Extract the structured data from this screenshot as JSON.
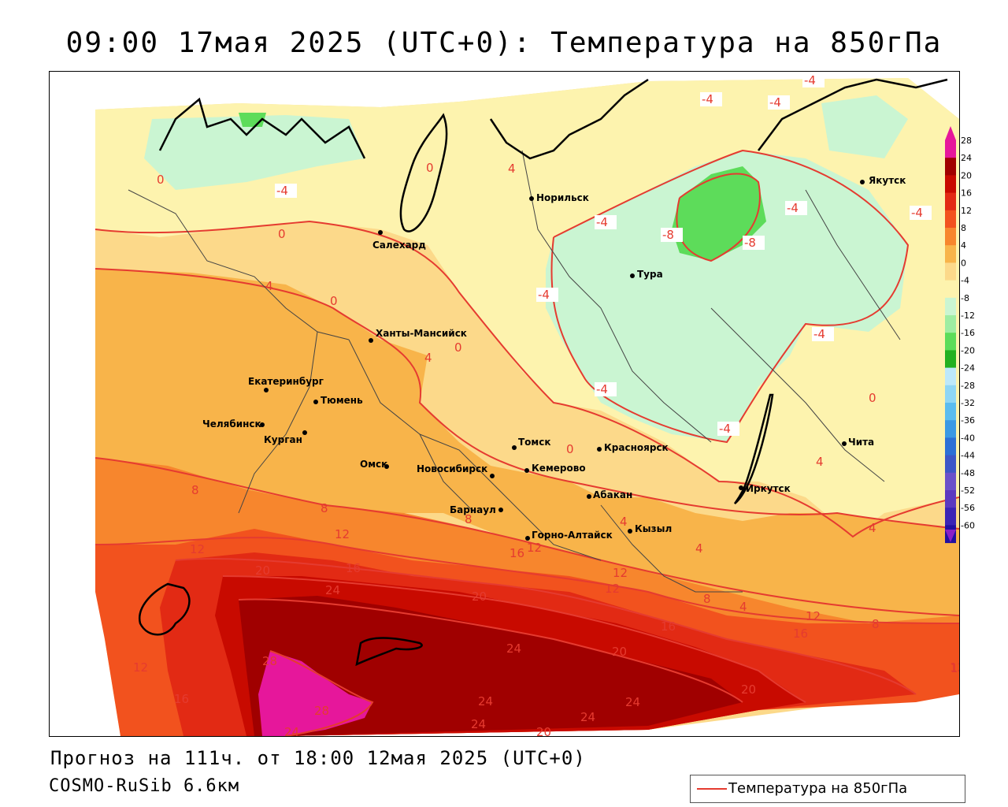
{
  "title": "09:00 17мая 2025 (UTC+0): Температура на 850гПа",
  "footer": {
    "forecast_line": "Прогноз на 111ч. от 18:00 12мая 2025 (UTC+0)",
    "model_line": "COSMO-RuSib 6.6км"
  },
  "legend": {
    "label": "Температура на 850гПа",
    "line_color": "#e53b30"
  },
  "cities": [
    "Норильск",
    "Якутск",
    "Салехард",
    "Тура",
    "Ханты-Мансийск",
    "Екатеринбург",
    "Тюмень",
    "Челябинск",
    "Курган",
    "Омск",
    "Новосибирск",
    "Томск",
    "Красноярск",
    "Кемерово",
    "Абакан",
    "Иркутск",
    "Чита",
    "Барнаул",
    "Горно-Алтайск",
    "Кызыл"
  ],
  "isotherm_labels": [
    "-4",
    "-4",
    "-4",
    "-4",
    "-4",
    "-4",
    "-4",
    "-4",
    "-4",
    "-4",
    "-4",
    "-8",
    "-8",
    "0",
    "0",
    "0",
    "0",
    "0",
    "0",
    "0",
    "4",
    "4",
    "4",
    "4",
    "4",
    "4",
    "4",
    "4",
    "8",
    "8",
    "8",
    "8",
    "8",
    "12",
    "12",
    "12",
    "12",
    "12",
    "12",
    "12",
    "12",
    "16",
    "16",
    "16",
    "16",
    "16",
    "20",
    "20",
    "20",
    "20",
    "20",
    "24",
    "24",
    "24",
    "24",
    "24",
    "24",
    "24",
    "28",
    "28",
    "1"
  ],
  "colorbar": {
    "ticks": [
      "28",
      "24",
      "20",
      "16",
      "12",
      "8",
      "4",
      "0",
      "-4",
      "-8",
      "-12",
      "-16",
      "-20",
      "-24",
      "-28",
      "-32",
      "-36",
      "-40",
      "-44",
      "-48",
      "-52",
      "-56",
      "-60"
    ],
    "colors": {
      "c28": "#e6179b",
      "c24": "#a00000",
      "c20": "#c80a00",
      "c16": "#e22a14",
      "c12": "#f2521e",
      "c8": "#f7862d",
      "c4": "#f8b44a",
      "c0": "#fcd98a",
      "cm4": "#fdf3ae",
      "cm8": "#caf5d2",
      "cm12": "#9eeda2",
      "cm16": "#5ddc5a",
      "cm20": "#23b020",
      "cm24": "#bde8fa",
      "cm28": "#8fd6f5",
      "cm32": "#5bbcef",
      "cm36": "#3b99e4",
      "cm40": "#2c70d6",
      "cm44": "#3d57c7",
      "cm48": "#6b52c9",
      "cm52": "#5b3ac0",
      "cm56": "#3b24b5",
      "cm60": "#2210a0"
    }
  }
}
